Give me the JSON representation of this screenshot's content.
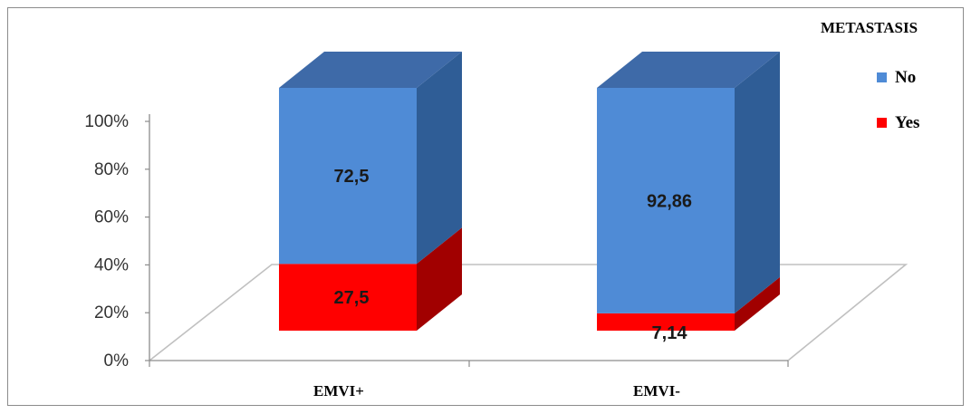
{
  "chart_data": {
    "type": "bar",
    "stacked": true,
    "three_d": true,
    "categories": [
      "EMVI+",
      "EMVI-"
    ],
    "series": [
      {
        "name": "Yes",
        "values": [
          27.5,
          7.14
        ],
        "labels": [
          "27,5",
          "7,14"
        ],
        "color": "#ff0000",
        "side_color": "#a10000",
        "top_color": "#c00000"
      },
      {
        "name": "No",
        "values": [
          72.5,
          92.86
        ],
        "labels": [
          "72,5",
          "92,86"
        ],
        "color": "#4f8bd6",
        "side_color": "#2f5d96",
        "top_color": "#3e6aa8"
      }
    ],
    "y_ticks": [
      "0%",
      "20%",
      "40%",
      "60%",
      "80%",
      "100%"
    ],
    "ylim": [
      0,
      100
    ],
    "legend": {
      "title": "METASTASIS",
      "position": "top-right",
      "order": [
        "No",
        "Yes"
      ]
    },
    "grid": false,
    "floor_color": "#c0c0c0"
  }
}
